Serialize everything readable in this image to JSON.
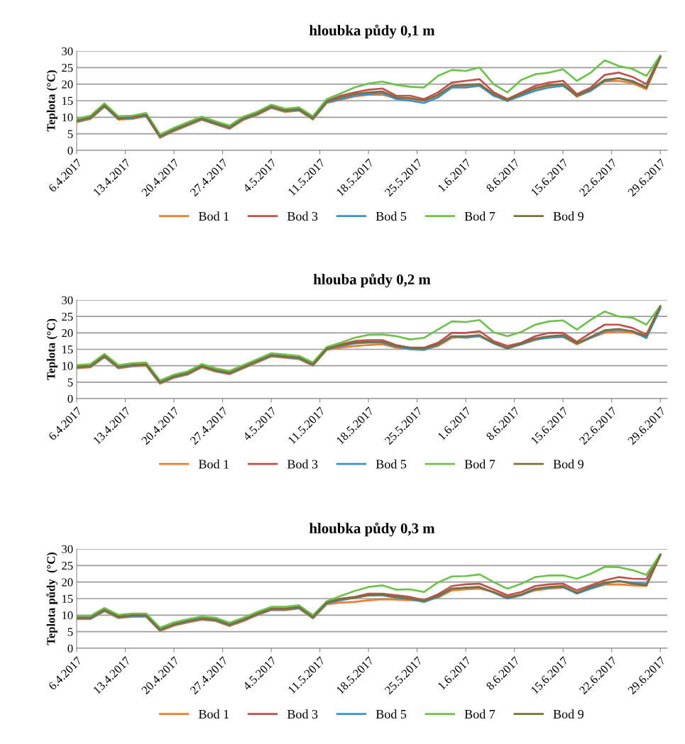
{
  "chart_data": [
    {
      "type": "line",
      "title": "hloubka půdy 0,1 m",
      "ylabel": "Teplota (°C)",
      "ylim": [
        0,
        30
      ],
      "yticks": [
        0,
        5,
        10,
        15,
        20,
        25,
        30
      ],
      "grid": "y",
      "legend": "bottom",
      "xlim": [
        "2017-04-06",
        "2017-06-30"
      ],
      "xticks": [
        {
          "value": "2017-04-06",
          "label": "6.4.2017"
        },
        {
          "value": "2017-04-13",
          "label": "13.4.2017"
        },
        {
          "value": "2017-04-20",
          "label": "20.4.2017"
        },
        {
          "value": "2017-04-27",
          "label": "27.4.2017"
        },
        {
          "value": "2017-05-04",
          "label": "4.5.2017"
        },
        {
          "value": "2017-05-11",
          "label": "11.5.2017"
        },
        {
          "value": "2017-05-18",
          "label": "18.5.2017"
        },
        {
          "value": "2017-05-25",
          "label": "25.5.2017"
        },
        {
          "value": "2017-06-01",
          "label": "1.6.2017"
        },
        {
          "value": "2017-06-08",
          "label": "8.6.2017"
        },
        {
          "value": "2017-06-15",
          "label": "15.6.2017"
        },
        {
          "value": "2017-06-22",
          "label": "22.6.2017"
        },
        {
          "value": "2017-06-29",
          "label": "29.6.2017"
        }
      ],
      "x": [
        "2017-04-06",
        "2017-04-08",
        "2017-04-10",
        "2017-04-12",
        "2017-04-14",
        "2017-04-16",
        "2017-04-18",
        "2017-04-20",
        "2017-04-22",
        "2017-04-24",
        "2017-04-26",
        "2017-04-28",
        "2017-04-30",
        "2017-05-02",
        "2017-05-04",
        "2017-05-06",
        "2017-05-08",
        "2017-05-10",
        "2017-05-12",
        "2017-05-14",
        "2017-05-16",
        "2017-05-18",
        "2017-05-20",
        "2017-05-22",
        "2017-05-24",
        "2017-05-26",
        "2017-05-28",
        "2017-05-30",
        "2017-06-01",
        "2017-06-03",
        "2017-06-05",
        "2017-06-07",
        "2017-06-09",
        "2017-06-11",
        "2017-06-13",
        "2017-06-15",
        "2017-06-17",
        "2017-06-19",
        "2017-06-21",
        "2017-06-23",
        "2017-06-25",
        "2017-06-27",
        "2017-06-29"
      ],
      "series": [
        {
          "name": "Bod 1",
          "color": "#ed7d31",
          "values": [
            8.5,
            9.5,
            13.2,
            9.3,
            9.5,
            10.3,
            3.8,
            5.8,
            7.5,
            9.2,
            7.8,
            6.5,
            9.2,
            10.7,
            12.8,
            11.6,
            12.0,
            9.3,
            14.3,
            15.3,
            16.3,
            16.8,
            16.8,
            15.8,
            15.5,
            15.0,
            16.5,
            19.0,
            19.5,
            19.5,
            16.8,
            14.8,
            17.0,
            18.5,
            19.5,
            19.8,
            16.2,
            18.0,
            20.8,
            21.0,
            20.3,
            18.5,
            28.0
          ]
        },
        {
          "name": "Bod 3",
          "color": "#c0504d",
          "values": [
            9.0,
            10.0,
            13.7,
            9.8,
            10.0,
            10.8,
            4.3,
            6.3,
            8.0,
            9.7,
            8.3,
            7.0,
            9.7,
            11.2,
            13.3,
            12.1,
            12.5,
            9.8,
            15.0,
            16.5,
            17.5,
            18.3,
            18.7,
            16.5,
            16.5,
            15.5,
            17.5,
            20.5,
            21.0,
            21.5,
            17.6,
            15.5,
            17.5,
            19.5,
            20.5,
            21.0,
            17.0,
            19.0,
            22.8,
            23.5,
            22.2,
            20.0,
            28.5
          ]
        },
        {
          "name": "Bod 5",
          "color": "#3f8fd0",
          "values": [
            8.7,
            9.7,
            13.4,
            9.5,
            9.7,
            10.5,
            4.0,
            6.0,
            7.7,
            9.4,
            8.0,
            6.7,
            9.4,
            10.9,
            13.0,
            11.8,
            12.2,
            9.5,
            14.5,
            15.5,
            16.5,
            17.0,
            17.3,
            15.5,
            15.0,
            14.3,
            16.0,
            19.0,
            19.0,
            19.5,
            16.5,
            15.0,
            16.5,
            18.0,
            19.0,
            19.5,
            16.5,
            18.0,
            21.0,
            21.8,
            21.0,
            19.0,
            28.3
          ]
        },
        {
          "name": "Bod 7",
          "color": "#6cc24a",
          "values": [
            9.5,
            10.5,
            14.2,
            10.3,
            10.5,
            11.3,
            4.8,
            6.8,
            8.5,
            10.2,
            8.8,
            7.5,
            10.2,
            11.7,
            13.8,
            12.6,
            13.0,
            10.3,
            15.5,
            17.2,
            19.0,
            20.2,
            20.8,
            19.8,
            19.2,
            19.0,
            22.5,
            24.3,
            24.0,
            25.0,
            20.0,
            17.5,
            21.3,
            23.0,
            23.5,
            24.5,
            21.0,
            23.5,
            27.2,
            25.5,
            24.6,
            22.5,
            28.6
          ]
        },
        {
          "name": "Bod 9",
          "color": "#7a7038",
          "values": [
            8.9,
            9.9,
            13.6,
            9.7,
            9.9,
            10.7,
            4.2,
            6.2,
            7.9,
            9.6,
            8.2,
            6.9,
            9.6,
            11.1,
            13.2,
            12.0,
            12.4,
            9.7,
            14.8,
            16.0,
            17.0,
            17.5,
            17.8,
            16.0,
            15.8,
            15.0,
            16.8,
            19.5,
            19.8,
            20.0,
            17.0,
            15.2,
            17.0,
            18.8,
            19.8,
            20.0,
            16.5,
            18.5,
            21.3,
            21.8,
            20.8,
            19.0,
            28.3
          ]
        }
      ]
    },
    {
      "type": "line",
      "title": "hlouba půdy 0,2 m",
      "ylabel": "Teplota (°C)",
      "ylim": [
        0,
        30
      ],
      "yticks": [
        0,
        5,
        10,
        15,
        20,
        25,
        30
      ],
      "grid": "y",
      "legend": "bottom",
      "xlim": [
        "2017-04-06",
        "2017-06-30"
      ],
      "xticks": [
        {
          "value": "2017-04-06",
          "label": "6.4.2017"
        },
        {
          "value": "2017-04-13",
          "label": "13.4.2017"
        },
        {
          "value": "2017-04-20",
          "label": "20.4.2017"
        },
        {
          "value": "2017-04-27",
          "label": "27.4.2017"
        },
        {
          "value": "2017-05-04",
          "label": "4.5.2017"
        },
        {
          "value": "2017-05-11",
          "label": "11.5.2017"
        },
        {
          "value": "2017-05-18",
          "label": "18.5.2017"
        },
        {
          "value": "2017-05-25",
          "label": "25.5.2017"
        },
        {
          "value": "2017-06-01",
          "label": "1.6.2017"
        },
        {
          "value": "2017-06-08",
          "label": "8.6.2017"
        },
        {
          "value": "2017-06-15",
          "label": "15.6.2017"
        },
        {
          "value": "2017-06-22",
          "label": "22.6.2017"
        },
        {
          "value": "2017-06-29",
          "label": "29.6.2017"
        }
      ],
      "x": [
        "2017-04-06",
        "2017-04-08",
        "2017-04-10",
        "2017-04-12",
        "2017-04-14",
        "2017-04-16",
        "2017-04-18",
        "2017-04-20",
        "2017-04-22",
        "2017-04-24",
        "2017-04-26",
        "2017-04-28",
        "2017-04-30",
        "2017-05-02",
        "2017-05-04",
        "2017-05-06",
        "2017-05-08",
        "2017-05-10",
        "2017-05-12",
        "2017-05-14",
        "2017-05-16",
        "2017-05-18",
        "2017-05-20",
        "2017-05-22",
        "2017-05-24",
        "2017-05-26",
        "2017-05-28",
        "2017-05-30",
        "2017-06-01",
        "2017-06-03",
        "2017-06-05",
        "2017-06-07",
        "2017-06-09",
        "2017-06-11",
        "2017-06-13",
        "2017-06-15",
        "2017-06-17",
        "2017-06-19",
        "2017-06-21",
        "2017-06-23",
        "2017-06-25",
        "2017-06-27",
        "2017-06-29"
      ],
      "series": [
        {
          "name": "Bod 1",
          "color": "#ed7d31",
          "values": [
            9.2,
            9.5,
            12.6,
            9.2,
            9.8,
            10.0,
            4.5,
            6.3,
            7.3,
            9.5,
            8.2,
            7.4,
            9.2,
            11.0,
            12.8,
            12.4,
            12.0,
            10.0,
            14.8,
            15.5,
            16.0,
            16.3,
            16.5,
            15.5,
            15.2,
            15.0,
            16.0,
            18.5,
            18.8,
            19.0,
            17.0,
            15.5,
            16.5,
            17.8,
            18.8,
            18.8,
            16.5,
            18.5,
            20.0,
            20.5,
            20.0,
            18.8,
            27.8
          ]
        },
        {
          "name": "Bod 3",
          "color": "#c0504d",
          "values": [
            9.7,
            10.0,
            13.1,
            9.7,
            10.3,
            10.5,
            5.0,
            6.8,
            7.8,
            10.0,
            8.7,
            7.9,
            9.7,
            11.5,
            13.3,
            12.9,
            12.5,
            10.5,
            15.4,
            16.5,
            17.5,
            17.8,
            17.8,
            16.3,
            15.5,
            15.5,
            17.0,
            20.0,
            20.0,
            20.5,
            17.5,
            16.0,
            17.0,
            19.0,
            20.0,
            20.0,
            17.3,
            20.0,
            22.5,
            22.5,
            21.5,
            19.5,
            28.2
          ]
        },
        {
          "name": "Bod 5",
          "color": "#3f8fd0",
          "values": [
            9.4,
            9.7,
            12.8,
            9.4,
            10.0,
            10.2,
            4.7,
            6.5,
            7.5,
            9.7,
            8.4,
            7.6,
            9.4,
            11.2,
            13.0,
            12.6,
            12.2,
            10.2,
            15.0,
            16.0,
            16.8,
            17.0,
            17.0,
            15.8,
            15.0,
            14.8,
            16.3,
            18.8,
            18.5,
            19.0,
            16.8,
            15.2,
            16.5,
            18.0,
            18.5,
            18.8,
            16.8,
            18.5,
            20.5,
            21.0,
            20.5,
            18.4,
            27.4
          ]
        },
        {
          "name": "Bod 7",
          "color": "#6cc24a",
          "values": [
            10.2,
            10.5,
            13.6,
            10.2,
            10.8,
            11.0,
            5.5,
            7.3,
            8.3,
            10.5,
            9.2,
            8.4,
            10.2,
            12.0,
            13.8,
            13.4,
            13.0,
            11.0,
            15.7,
            17.0,
            18.5,
            19.4,
            19.5,
            19.0,
            18.0,
            18.5,
            21.0,
            23.5,
            23.3,
            23.9,
            20.2,
            19.0,
            20.3,
            22.5,
            23.5,
            23.8,
            21.0,
            24.0,
            26.5,
            25.0,
            24.6,
            22.5,
            28.2
          ]
        },
        {
          "name": "Bod 9",
          "color": "#7a7038",
          "values": [
            9.6,
            9.9,
            13.0,
            9.6,
            10.2,
            10.4,
            4.9,
            6.7,
            7.7,
            9.9,
            8.6,
            7.8,
            9.6,
            11.4,
            13.2,
            12.8,
            12.4,
            10.4,
            15.2,
            16.2,
            17.0,
            17.3,
            17.3,
            16.0,
            15.5,
            15.2,
            16.5,
            19.0,
            19.0,
            19.3,
            17.0,
            15.3,
            16.8,
            18.3,
            19.0,
            19.3,
            16.8,
            18.8,
            20.8,
            21.2,
            20.5,
            19.0,
            28.0
          ]
        }
      ]
    },
    {
      "type": "line",
      "title": "hloubka půdy 0,3 m",
      "ylabel": "Teplota půdy  (°C)",
      "ylim": [
        0,
        30
      ],
      "yticks": [
        0,
        5,
        10,
        15,
        20,
        25,
        30
      ],
      "grid": "y",
      "legend": "bottom",
      "xlim": [
        "2017-04-06",
        "2017-06-30"
      ],
      "xticks": [
        {
          "value": "2017-04-06",
          "label": "6.4.2017"
        },
        {
          "value": "2017-04-13",
          "label": "13.4.2017"
        },
        {
          "value": "2017-04-20",
          "label": "20.4.2017"
        },
        {
          "value": "2017-04-27",
          "label": "27.4.2017"
        },
        {
          "value": "2017-05-04",
          "label": "4.5.2017"
        },
        {
          "value": "2017-05-11",
          "label": "11.5.2017"
        },
        {
          "value": "2017-05-18",
          "label": "18.5.2017"
        },
        {
          "value": "2017-05-25",
          "label": "25.5.2017"
        },
        {
          "value": "2017-06-01",
          "label": "1.6.2017"
        },
        {
          "value": "2017-06-08",
          "label": "8.6.2017"
        },
        {
          "value": "2017-06-15",
          "label": "15.6.2017"
        },
        {
          "value": "2017-06-22",
          "label": "22.6.2017"
        },
        {
          "value": "2017-06-29",
          "label": "29.6.2017"
        }
      ],
      "x": [
        "2017-04-06",
        "2017-04-08",
        "2017-04-10",
        "2017-04-12",
        "2017-04-14",
        "2017-04-16",
        "2017-04-18",
        "2017-04-20",
        "2017-04-22",
        "2017-04-24",
        "2017-04-26",
        "2017-04-28",
        "2017-04-30",
        "2017-05-02",
        "2017-05-04",
        "2017-05-06",
        "2017-05-08",
        "2017-05-10",
        "2017-05-12",
        "2017-05-14",
        "2017-05-16",
        "2017-05-18",
        "2017-05-20",
        "2017-05-22",
        "2017-05-24",
        "2017-05-26",
        "2017-05-28",
        "2017-05-30",
        "2017-06-01",
        "2017-06-03",
        "2017-06-05",
        "2017-06-07",
        "2017-06-09",
        "2017-06-11",
        "2017-06-13",
        "2017-06-15",
        "2017-06-17",
        "2017-06-19",
        "2017-06-21",
        "2017-06-23",
        "2017-06-25",
        "2017-06-27",
        "2017-06-29"
      ],
      "series": [
        {
          "name": "Bod 1",
          "color": "#ed7d31",
          "values": [
            8.8,
            8.8,
            11.2,
            9.1,
            9.5,
            9.5,
            5.2,
            6.8,
            7.8,
            8.6,
            8.2,
            6.7,
            8.2,
            10.0,
            11.5,
            11.5,
            12.0,
            9.0,
            13.3,
            13.8,
            14.0,
            14.5,
            14.8,
            14.7,
            14.5,
            14.5,
            15.3,
            17.5,
            17.8,
            18.0,
            17.0,
            15.5,
            16.2,
            17.5,
            18.0,
            18.3,
            16.8,
            18.0,
            19.2,
            19.3,
            19.0,
            18.8,
            28.0
          ]
        },
        {
          "name": "Bod 3",
          "color": "#c0504d",
          "values": [
            9.3,
            9.3,
            11.7,
            9.6,
            10.0,
            10.0,
            5.7,
            7.3,
            8.3,
            9.1,
            8.7,
            7.2,
            8.7,
            10.5,
            12.0,
            12.0,
            12.5,
            9.5,
            14.0,
            15.0,
            15.5,
            16.5,
            16.5,
            16.0,
            15.5,
            14.5,
            16.3,
            18.8,
            19.3,
            19.5,
            17.8,
            16.0,
            17.0,
            18.8,
            19.3,
            19.5,
            17.5,
            19.0,
            20.5,
            21.5,
            21.0,
            20.9,
            28.4
          ]
        },
        {
          "name": "Bod 5",
          "color": "#3f8fd0",
          "values": [
            9.0,
            9.0,
            11.4,
            9.3,
            9.7,
            9.7,
            5.4,
            7.0,
            8.0,
            8.8,
            8.4,
            6.9,
            8.4,
            10.2,
            11.7,
            11.7,
            12.2,
            9.2,
            13.5,
            14.5,
            15.2,
            16.0,
            16.0,
            15.3,
            14.8,
            14.0,
            15.5,
            18.0,
            18.3,
            18.5,
            16.8,
            15.0,
            16.0,
            17.8,
            18.3,
            18.5,
            16.5,
            18.0,
            19.5,
            20.3,
            19.8,
            19.5,
            28.2
          ]
        },
        {
          "name": "Bod 7",
          "color": "#6cc24a",
          "values": [
            9.8,
            9.8,
            12.2,
            10.1,
            10.5,
            10.5,
            6.2,
            7.8,
            8.8,
            9.6,
            9.2,
            7.7,
            9.2,
            11.0,
            12.5,
            12.5,
            13.0,
            10.0,
            14.2,
            15.8,
            17.3,
            18.5,
            19.0,
            17.7,
            17.8,
            17.0,
            19.9,
            21.7,
            21.8,
            22.3,
            20.0,
            18.0,
            19.5,
            21.5,
            22.0,
            22.0,
            21.0,
            22.5,
            24.6,
            24.5,
            23.6,
            22.2,
            28.4
          ]
        },
        {
          "name": "Bod 9",
          "color": "#7a7038",
          "values": [
            9.2,
            9.2,
            11.6,
            9.5,
            9.9,
            9.9,
            5.6,
            7.2,
            8.2,
            9.0,
            8.6,
            7.1,
            8.6,
            10.4,
            11.9,
            11.9,
            12.4,
            9.4,
            13.8,
            14.8,
            15.3,
            16.0,
            16.2,
            15.5,
            15.0,
            14.3,
            15.8,
            18.0,
            18.3,
            18.5,
            17.0,
            15.3,
            16.3,
            18.0,
            18.5,
            18.8,
            16.8,
            18.5,
            19.8,
            20.3,
            19.5,
            19.0,
            28.2
          ]
        }
      ]
    }
  ]
}
